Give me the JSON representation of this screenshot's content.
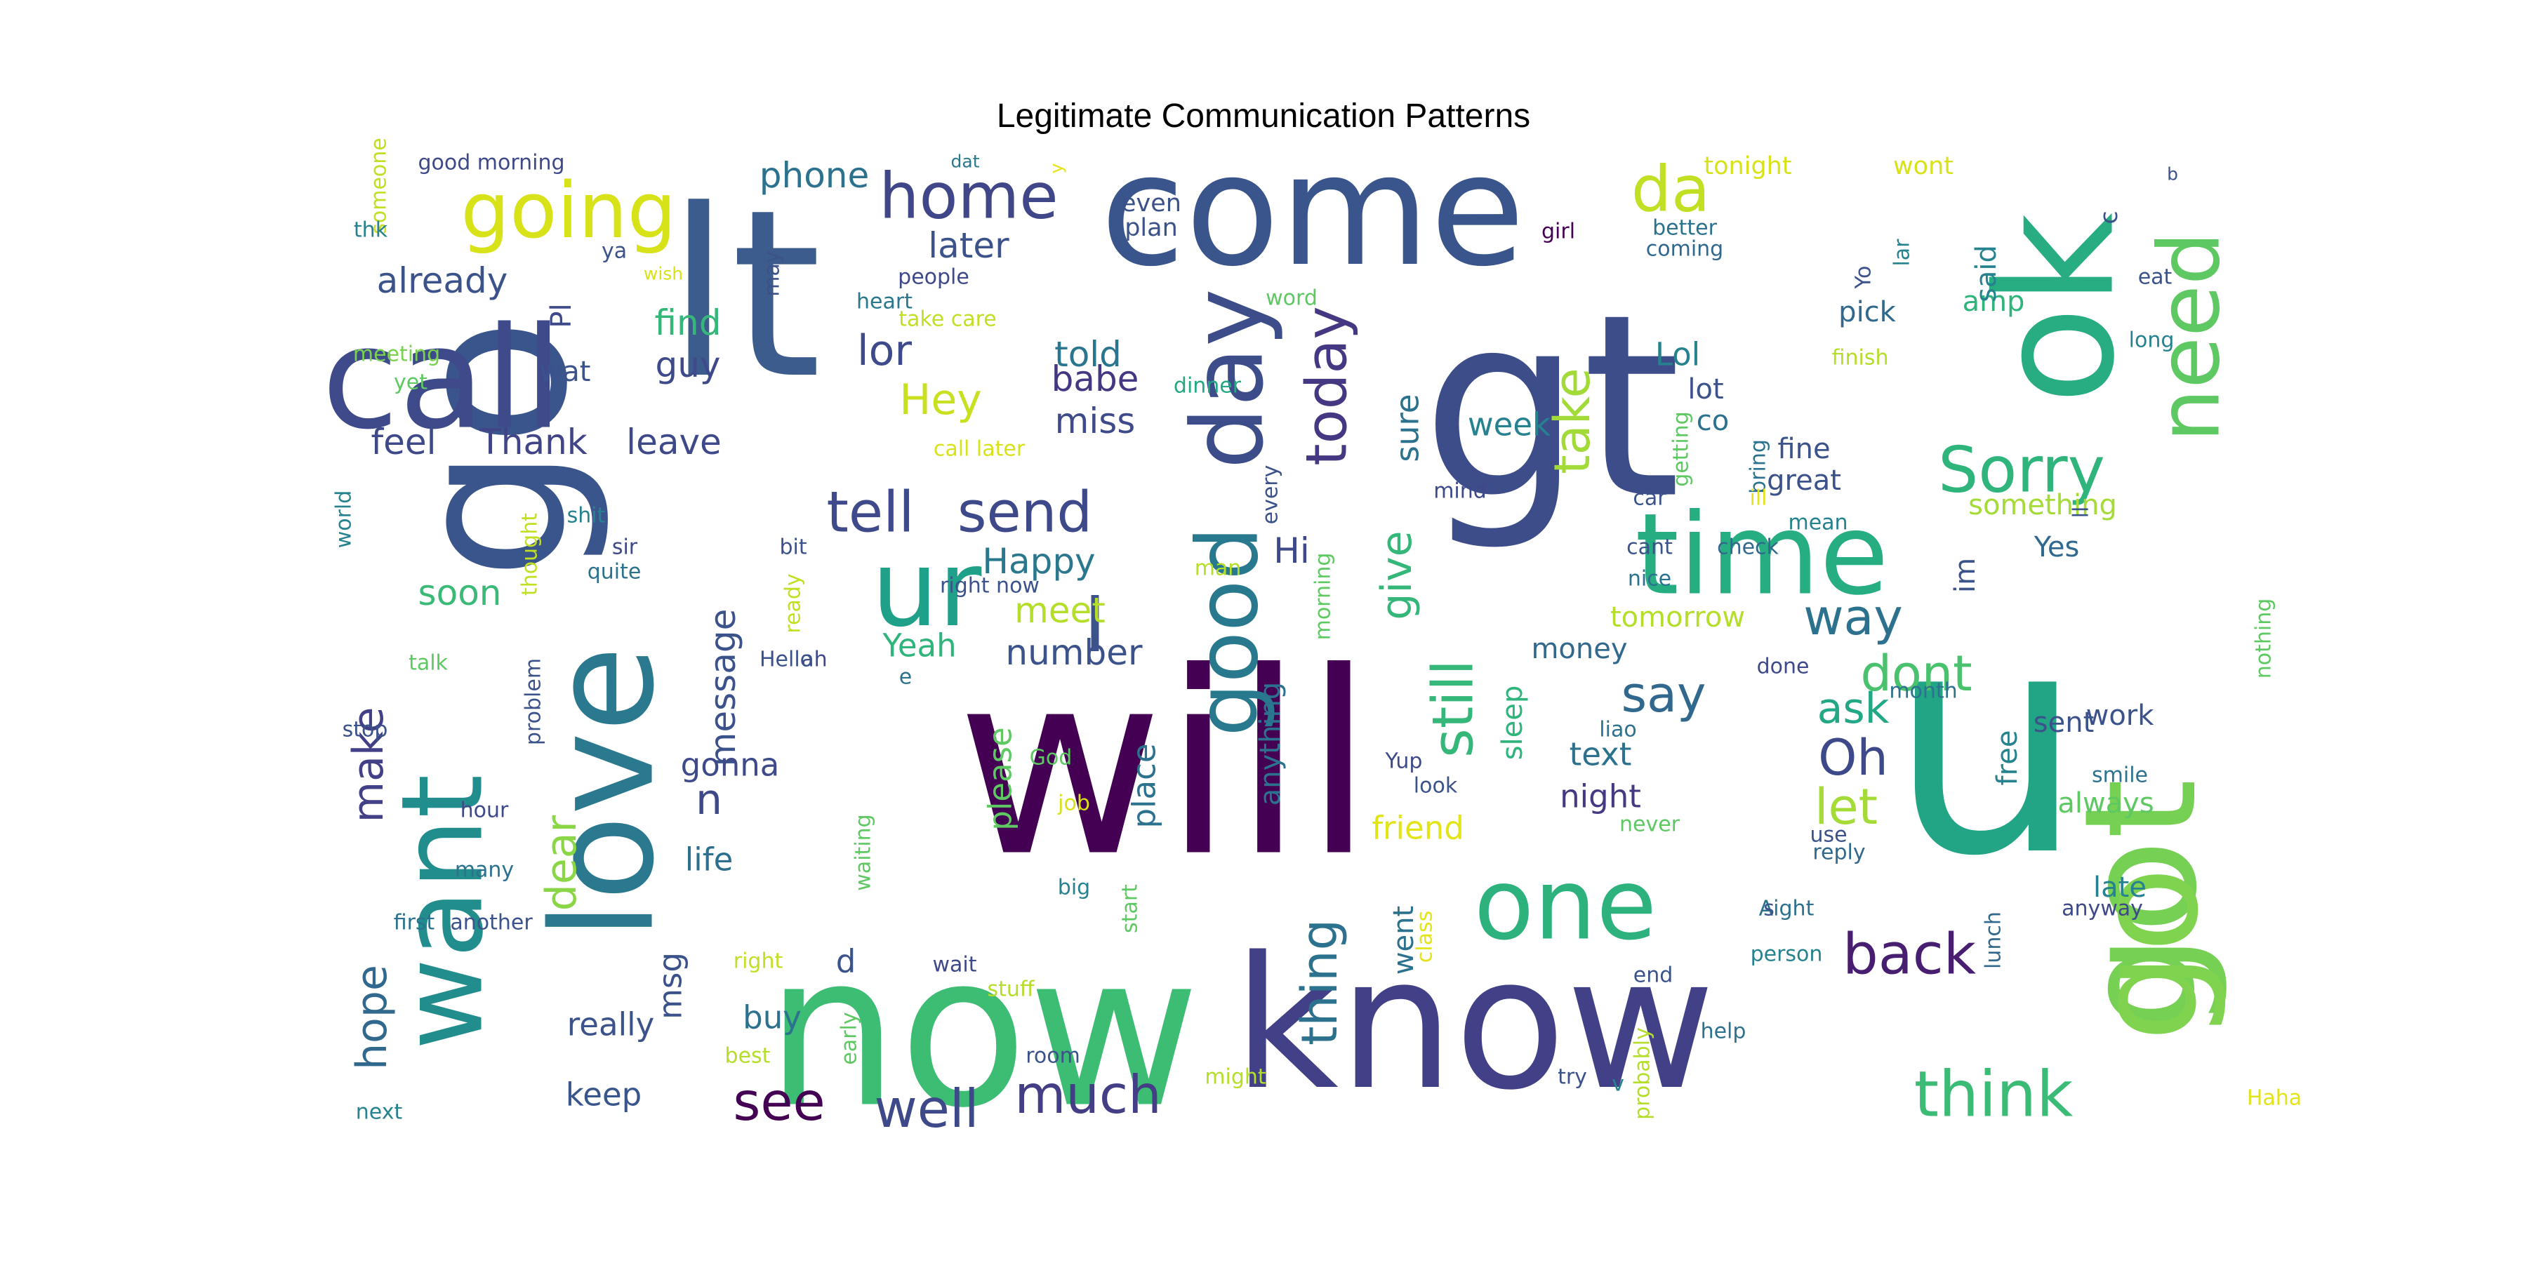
{
  "title": "Legitimate Communication Patterns",
  "palette": "viridis",
  "words": [
    {
      "text": "will",
      "color": "#440154"
    },
    {
      "text": "u",
      "color": "#21a585"
    },
    {
      "text": "now",
      "color": "#3dbc74"
    },
    {
      "text": "lt",
      "color": "#3b5c8c"
    },
    {
      "text": "gt",
      "color": "#3d4d8a"
    },
    {
      "text": "ok",
      "color": "#27ad81"
    },
    {
      "text": "go",
      "color": "#3a548c"
    },
    {
      "text": "know",
      "color": "#424086"
    },
    {
      "text": "got",
      "color": "#75d054"
    },
    {
      "text": "come",
      "color": "#3a548c"
    },
    {
      "text": "call",
      "color": "#3e4a89"
    },
    {
      "text": "love",
      "color": "#2a798e"
    },
    {
      "text": "want",
      "color": "#228d8d"
    },
    {
      "text": "time",
      "color": "#26ad81"
    },
    {
      "text": "ur",
      "color": "#1fa088"
    },
    {
      "text": "go",
      "color": "#7fd34e"
    },
    {
      "text": "day",
      "color": "#3d4d8a"
    },
    {
      "text": "good",
      "color": "#29798e"
    },
    {
      "text": "need",
      "color": "#5ec962"
    },
    {
      "text": "one",
      "color": "#2db27d"
    },
    {
      "text": "going",
      "color": "#d8e219"
    },
    {
      "text": "I",
      "color": "#3b528b"
    },
    {
      "text": "home",
      "color": "#3f4788"
    },
    {
      "text": "da",
      "color": "#c2df23"
    },
    {
      "text": "Sorry",
      "color": "#2fb47c"
    },
    {
      "text": "think",
      "color": "#3bbb75"
    },
    {
      "text": "send",
      "color": "#3e4989"
    },
    {
      "text": "tell",
      "color": "#3e4a89"
    },
    {
      "text": "back",
      "color": "#481f70"
    },
    {
      "text": "still",
      "color": "#35b779"
    },
    {
      "text": "today",
      "color": "#453781"
    },
    {
      "text": "see",
      "color": "#440154"
    },
    {
      "text": "well",
      "color": "#3e4989"
    },
    {
      "text": "much",
      "color": "#433e85"
    },
    {
      "text": "way",
      "color": "#2c718e"
    },
    {
      "text": "dont",
      "color": "#4ac16d"
    },
    {
      "text": "say",
      "color": "#31688e"
    },
    {
      "text": "ask",
      "color": "#22a884"
    },
    {
      "text": "Oh",
      "color": "#3e4989"
    },
    {
      "text": "let",
      "color": "#a5db36"
    },
    {
      "text": "thing",
      "color": "#2c728e"
    },
    {
      "text": "give",
      "color": "#35b779"
    },
    {
      "text": "take",
      "color": "#a2da37"
    },
    {
      "text": "Hey",
      "color": "#c8e020"
    },
    {
      "text": "lor",
      "color": "#3e4a89"
    },
    {
      "text": "make",
      "color": "#424086"
    },
    {
      "text": "dear",
      "color": "#8bd646"
    },
    {
      "text": "hope",
      "color": "#31688e"
    },
    {
      "text": "n",
      "color": "#3e4989"
    },
    {
      "text": "phone",
      "color": "#2c728e"
    },
    {
      "text": "later",
      "color": "#3b528b"
    },
    {
      "text": "already",
      "color": "#3b528b"
    },
    {
      "text": "find",
      "color": "#35b779"
    },
    {
      "text": "guy",
      "color": "#3e4a89"
    },
    {
      "text": "feel",
      "color": "#3e4989"
    },
    {
      "text": "Thank",
      "color": "#414487"
    },
    {
      "text": "leave",
      "color": "#3e4989"
    },
    {
      "text": "babe",
      "color": "#453781"
    },
    {
      "text": "miss",
      "color": "#3e4a89"
    },
    {
      "text": "told",
      "color": "#2a768e"
    },
    {
      "text": "Happy",
      "color": "#2a778e"
    },
    {
      "text": "meet",
      "color": "#b5de2b"
    },
    {
      "text": "Hi",
      "color": "#3e4989"
    },
    {
      "text": "Yeah",
      "color": "#2fb47c"
    },
    {
      "text": "number",
      "color": "#3b528b"
    },
    {
      "text": "soon",
      "color": "#3aba76"
    },
    {
      "text": "message",
      "color": "#3b528b"
    },
    {
      "text": "gonna",
      "color": "#3e4a89"
    },
    {
      "text": "life",
      "color": "#2e6f8e"
    },
    {
      "text": "really",
      "color": "#3b528b"
    },
    {
      "text": "keep",
      "color": "#39568c"
    },
    {
      "text": "buy",
      "color": "#2c728e"
    },
    {
      "text": "d",
      "color": "#3b528b"
    },
    {
      "text": "msg",
      "color": "#3b528b"
    },
    {
      "text": "please",
      "color": "#5ec962"
    },
    {
      "text": "place",
      "color": "#2c728e"
    },
    {
      "text": "anything",
      "color": "#2c728e"
    },
    {
      "text": "friend",
      "color": "#e2e418"
    },
    {
      "text": "went",
      "color": "#2c728e"
    },
    {
      "text": "sleep",
      "color": "#2fb47c"
    },
    {
      "text": "night",
      "color": "#443983"
    },
    {
      "text": "text",
      "color": "#2c728e"
    },
    {
      "text": "money",
      "color": "#31688e"
    },
    {
      "text": "week",
      "color": "#26828e"
    },
    {
      "text": "sure",
      "color": "#2c728e"
    },
    {
      "text": "Lol",
      "color": "#26828e"
    },
    {
      "text": "lot",
      "color": "#3b528b"
    },
    {
      "text": "co",
      "color": "#2c728e"
    },
    {
      "text": "fine",
      "color": "#3b528b"
    },
    {
      "text": "great",
      "color": "#3b528b"
    },
    {
      "text": "amp",
      "color": "#2fb47c"
    },
    {
      "text": "pick",
      "color": "#31688e"
    },
    {
      "text": "said",
      "color": "#26828e"
    },
    {
      "text": "something",
      "color": "#a5db36"
    },
    {
      "text": "Yes",
      "color": "#31688e"
    },
    {
      "text": "im",
      "color": "#3b528b"
    },
    {
      "text": "sent",
      "color": "#3b528b"
    },
    {
      "text": "work",
      "color": "#3b528b"
    },
    {
      "text": "free",
      "color": "#26828e"
    },
    {
      "text": "always",
      "color": "#5ec962"
    },
    {
      "text": "late",
      "color": "#26828e"
    },
    {
      "text": "tomorrow",
      "color": "#b5de2b"
    },
    {
      "text": "wat",
      "color": "#3b528b"
    },
    {
      "text": "Pl",
      "color": "#3e4989"
    },
    {
      "text": "even",
      "color": "#3b528b"
    },
    {
      "text": "plan",
      "color": "#3b528b"
    },
    {
      "text": "heart",
      "color": "#2a788e"
    },
    {
      "text": "people",
      "color": "#3e4989"
    },
    {
      "text": "take care",
      "color": "#c2df23"
    },
    {
      "text": "word",
      "color": "#5ec962"
    },
    {
      "text": "dinner",
      "color": "#22a884"
    },
    {
      "text": "mind",
      "color": "#3e4989"
    },
    {
      "text": "girl",
      "color": "#440154"
    },
    {
      "text": "better",
      "color": "#2c728e"
    },
    {
      "text": "coming",
      "color": "#31688e"
    },
    {
      "text": "finish",
      "color": "#b5de2b"
    },
    {
      "text": "eat",
      "color": "#3b528b"
    },
    {
      "text": "long",
      "color": "#26828e"
    },
    {
      "text": "lar",
      "color": "#26828e"
    },
    {
      "text": "Yo",
      "color": "#3b528b"
    },
    {
      "text": "c",
      "color": "#3b528b"
    },
    {
      "text": "b",
      "color": "#3b528b"
    },
    {
      "text": "wont",
      "color": "#d8e219"
    },
    {
      "text": "tonight",
      "color": "#d8e219"
    },
    {
      "text": "dat",
      "color": "#2a788e"
    },
    {
      "text": "good morning",
      "color": "#3e4989"
    },
    {
      "text": "someone",
      "color": "#c2df23"
    },
    {
      "text": "thk",
      "color": "#26828e"
    },
    {
      "text": "ya",
      "color": "#3b528b"
    },
    {
      "text": "wish",
      "color": "#d8e219"
    },
    {
      "text": "may",
      "color": "#3b528b"
    },
    {
      "text": "meeting",
      "color": "#7ad151"
    },
    {
      "text": "yet",
      "color": "#5ec962"
    },
    {
      "text": "world",
      "color": "#26828e"
    },
    {
      "text": "call later",
      "color": "#d8e219"
    },
    {
      "text": "every",
      "color": "#3b528b"
    },
    {
      "text": "getting",
      "color": "#5ec962"
    },
    {
      "text": "bring",
      "color": "#2c728e"
    },
    {
      "text": "car",
      "color": "#3b528b"
    },
    {
      "text": "ill",
      "color": "#e2e418"
    },
    {
      "text": "mean",
      "color": "#26828e"
    },
    {
      "text": "check",
      "color": "#31688e"
    },
    {
      "text": "ll",
      "color": "#3b528b"
    },
    {
      "text": "cant",
      "color": "#3b528b"
    },
    {
      "text": "nice",
      "color": "#2c728e"
    },
    {
      "text": "man",
      "color": "#b5de2b"
    },
    {
      "text": "morning",
      "color": "#5ec962"
    },
    {
      "text": "right now",
      "color": "#3b528b"
    },
    {
      "text": "bit",
      "color": "#3b528b"
    },
    {
      "text": "ready",
      "color": "#c2df23"
    },
    {
      "text": "ah",
      "color": "#3e4989"
    },
    {
      "text": "Hello",
      "color": "#3b528b"
    },
    {
      "text": "e",
      "color": "#2c728e"
    },
    {
      "text": "thought",
      "color": "#c2df23"
    },
    {
      "text": "shit",
      "color": "#26828e"
    },
    {
      "text": "sir",
      "color": "#3e4989"
    },
    {
      "text": "quite",
      "color": "#2c728e"
    },
    {
      "text": "talk",
      "color": "#5ec962"
    },
    {
      "text": "problem",
      "color": "#3b528b"
    },
    {
      "text": "stop",
      "color": "#3b528b"
    },
    {
      "text": "hour",
      "color": "#3e4989"
    },
    {
      "text": "many",
      "color": "#2c728e"
    },
    {
      "text": "first",
      "color": "#2c728e"
    },
    {
      "text": "another",
      "color": "#3b528b"
    },
    {
      "text": "next",
      "color": "#26828e"
    },
    {
      "text": "God",
      "color": "#5ec962"
    },
    {
      "text": "job",
      "color": "#d8e219"
    },
    {
      "text": "waiting",
      "color": "#5ec962"
    },
    {
      "text": "big",
      "color": "#26828e"
    },
    {
      "text": "Yup",
      "color": "#3e4989"
    },
    {
      "text": "look",
      "color": "#3b528b"
    },
    {
      "text": "liao",
      "color": "#2c728e"
    },
    {
      "text": "done",
      "color": "#3e4989"
    },
    {
      "text": "month",
      "color": "#2c728e"
    },
    {
      "text": "nothing",
      "color": "#5ec962"
    },
    {
      "text": "smile",
      "color": "#2c728e"
    },
    {
      "text": "never",
      "color": "#5ec962"
    },
    {
      "text": "use",
      "color": "#3b528b"
    },
    {
      "text": "reply",
      "color": "#31688e"
    },
    {
      "text": "anyway",
      "color": "#3e4989"
    },
    {
      "text": "Aight",
      "color": "#2c728e"
    },
    {
      "text": "s",
      "color": "#3b528b"
    },
    {
      "text": "person",
      "color": "#26828e"
    },
    {
      "text": "end",
      "color": "#3b528b"
    },
    {
      "text": "lunch",
      "color": "#31688e"
    },
    {
      "text": "help",
      "color": "#2c728e"
    },
    {
      "text": "probably",
      "color": "#b5de2b"
    },
    {
      "text": "v",
      "color": "#26828e"
    },
    {
      "text": "try",
      "color": "#3b528b"
    },
    {
      "text": "Haha",
      "color": "#e2e418"
    },
    {
      "text": "might",
      "color": "#b5de2b"
    },
    {
      "text": "class",
      "color": "#e2e418"
    },
    {
      "text": "start",
      "color": "#5ec962"
    },
    {
      "text": "room",
      "color": "#3b528b"
    },
    {
      "text": "stuff",
      "color": "#b5de2b"
    },
    {
      "text": "wait",
      "color": "#3e4989"
    },
    {
      "text": "right",
      "color": "#c2df23"
    },
    {
      "text": "early",
      "color": "#5ec962"
    },
    {
      "text": "best",
      "color": "#b5de2b"
    },
    {
      "text": "y",
      "color": "#e2e418"
    }
  ]
}
